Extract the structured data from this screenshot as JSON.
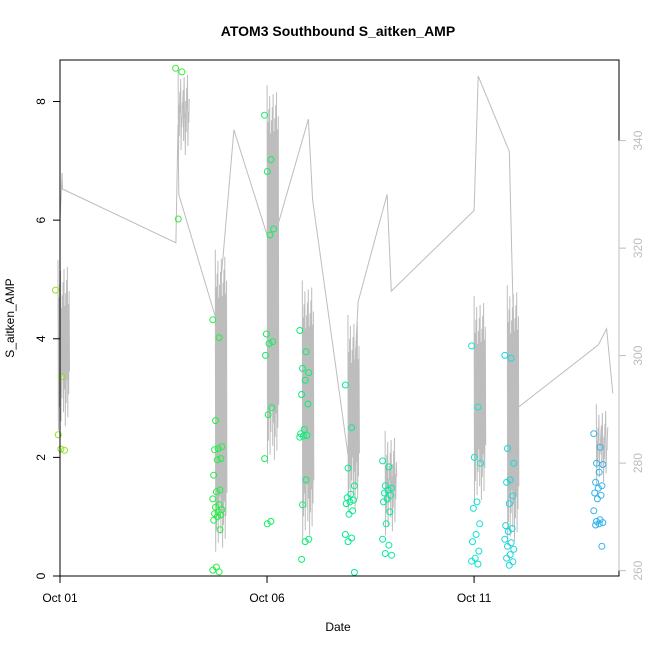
{
  "chart_data": {
    "type": "scatter",
    "title": "ATOM3 Southbound S_aitken_AMP",
    "xlabel": "Date",
    "ylabel": "S_aitken_AMP",
    "xlim": [
      "2016-10-01",
      "2016-10-14.5"
    ],
    "ylim": [
      0,
      8.7
    ],
    "xticks": [
      {
        "label": "Oct 01",
        "value": "2016-10-01"
      },
      {
        "label": "Oct 06",
        "value": "2016-10-06"
      },
      {
        "label": "Oct 11",
        "value": "2016-10-11"
      }
    ],
    "yticks": [
      0,
      2,
      4,
      6,
      8
    ],
    "y2lim": [
      259,
      355
    ],
    "y2ticks": [
      260,
      280,
      300,
      320,
      340
    ],
    "grid": false,
    "legend": "none",
    "colors": {
      "line": "#bdbdbd",
      "box": "#000000",
      "right_axis": "#bdbdbd",
      "scatter_gradient": [
        "#90e21e",
        "#27f03d",
        "#00ee88",
        "#13e3d3",
        "#38aaf0"
      ]
    },
    "scatter_series": [
      {
        "date": "2016-10-01",
        "values": [
          4.82,
          3.36,
          2.38,
          2.12,
          2.14
        ]
      },
      {
        "date": "2016-10-03.9",
        "values": [
          8.56,
          8.5,
          6.02
        ]
      },
      {
        "date": "2016-10-04.8",
        "values": [
          4.32,
          4.02,
          2.62,
          2.18,
          2.15,
          2.13,
          1.98,
          1.96,
          1.7,
          1.45,
          1.42,
          1.3,
          1.2,
          1.16,
          1.12,
          1.08,
          1.05,
          1.03,
          1.0,
          0.94,
          0.78,
          0.15,
          0.1,
          0.07
        ]
      },
      {
        "date": "2016-10-06.05",
        "values": [
          7.77,
          7.02,
          6.82,
          5.85,
          5.75,
          4.08,
          3.95,
          3.92,
          3.72,
          2.84,
          2.72,
          1.98,
          0.92,
          0.88
        ]
      },
      {
        "date": "2016-10-06.9",
        "values": [
          4.14,
          3.78,
          3.5,
          3.43,
          3.3,
          3.06,
          2.9,
          2.47,
          2.4,
          2.37,
          2.36,
          2.34,
          1.62,
          1.2,
          0.62,
          0.58,
          0.28
        ]
      },
      {
        "date": "2016-10-08",
        "values": [
          3.22,
          2.5,
          1.82,
          1.52,
          1.38,
          1.32,
          1.28,
          1.25,
          1.22,
          1.1,
          1.04,
          0.7,
          0.64,
          0.58,
          0.06
        ]
      },
      {
        "date": "2016-10-08.9",
        "values": [
          1.94,
          1.84,
          1.52,
          1.48,
          1.45,
          1.4,
          1.36,
          1.3,
          1.25,
          1.08,
          0.88,
          0.62,
          0.52,
          0.38,
          0.35
        ]
      },
      {
        "date": "2016-10-11.05",
        "values": [
          3.88,
          2.85,
          2.0,
          1.9,
          1.25,
          1.14,
          0.88,
          0.7,
          0.58,
          0.42,
          0.3,
          0.25,
          0.2
        ]
      },
      {
        "date": "2016-10-11.85",
        "values": [
          3.72,
          3.67,
          2.15,
          1.9,
          1.62,
          1.58,
          1.35,
          1.22,
          0.85,
          0.8,
          0.75,
          0.62,
          0.56,
          0.5,
          0.45,
          0.36,
          0.3,
          0.24,
          0.18
        ]
      },
      {
        "date": "2016-10-14",
        "values": [
          2.4,
          2.17,
          1.9,
          1.88,
          1.75,
          1.58,
          1.52,
          1.48,
          1.4,
          1.36,
          1.3,
          1.1,
          0.95,
          0.92,
          0.9,
          0.88,
          0.86,
          0.5
        ]
      }
    ],
    "line_series": {
      "axis": "right",
      "points": [
        [
          "2016-10-01",
          325
        ],
        [
          "2016-10-01.05",
          334
        ],
        [
          "2016-10-01.06",
          331
        ],
        [
          "2016-10-03.8",
          321
        ],
        [
          "2016-10-03.85",
          343
        ],
        [
          "2016-10-03.87",
          330
        ],
        [
          "2016-10-04.8",
          306
        ],
        [
          "2016-10-05.2",
          342
        ],
        [
          "2016-10-06.1",
          320
        ],
        [
          "2016-10-07.0",
          344
        ],
        [
          "2016-10-07.1",
          329
        ],
        [
          "2016-10-08.0",
          279
        ],
        [
          "2016-10-08.2",
          310
        ],
        [
          "2016-10-08.9",
          330
        ],
        [
          "2016-10-09.0",
          312
        ],
        [
          "2016-10-11.0",
          327
        ],
        [
          "2016-10-11.1",
          352
        ],
        [
          "2016-10-11.85",
          338
        ],
        [
          "2016-10-12.0",
          290
        ],
        [
          "2016-10-14.0",
          302
        ],
        [
          "2016-10-14.2",
          305
        ],
        [
          "2016-10-14.35",
          293
        ]
      ]
    }
  }
}
